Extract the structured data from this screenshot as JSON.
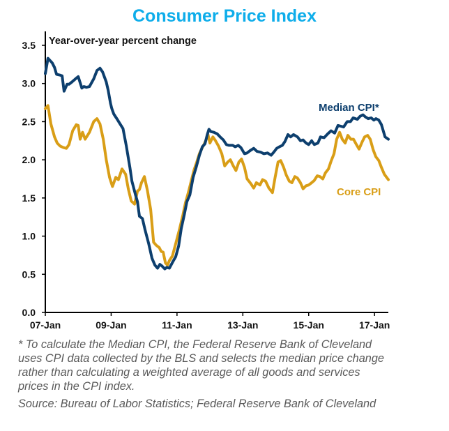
{
  "chart_data": {
    "type": "line",
    "title": "Consumer Price Index",
    "subtitle": "Year-over-year percent change",
    "xlabel": "",
    "ylabel": "Year-over-year percent change",
    "ylim": [
      0,
      3.5
    ],
    "xlim": [
      2007.0,
      2017.42
    ],
    "yticks": [
      0.0,
      0.5,
      1.0,
      1.5,
      2.0,
      2.5,
      3.0,
      3.5
    ],
    "ytick_labels": [
      "0.0",
      "0.5",
      "1.0",
      "1.5",
      "2.0",
      "2.5",
      "3.0",
      "3.5"
    ],
    "xticks": [
      2007,
      2009,
      2011,
      2013,
      2015,
      2017
    ],
    "xtick_labels": [
      "07-Jan",
      "09-Jan",
      "11-Jan",
      "13-Jan",
      "15-Jan",
      "17-Jan"
    ],
    "grid": false,
    "legend": "inline labels at right",
    "colors": {
      "median": "#0d3f6e",
      "core": "#d99e17",
      "title": "#0eadea"
    },
    "series": [
      {
        "name": "Median CPI*",
        "color": "#0d3f6e",
        "points": [
          [
            2007.0,
            3.13
          ],
          [
            2007.08,
            3.33
          ],
          [
            2007.21,
            3.27
          ],
          [
            2007.28,
            3.21
          ],
          [
            2007.34,
            3.12
          ],
          [
            2007.45,
            3.11
          ],
          [
            2007.51,
            3.1
          ],
          [
            2007.57,
            2.9
          ],
          [
            2007.66,
            2.99
          ],
          [
            2007.72,
            2.99
          ],
          [
            2007.81,
            3.02
          ],
          [
            2007.94,
            3.07
          ],
          [
            2008.0,
            3.09
          ],
          [
            2008.11,
            2.94
          ],
          [
            2008.17,
            2.96
          ],
          [
            2008.25,
            2.95
          ],
          [
            2008.34,
            2.96
          ],
          [
            2008.47,
            3.06
          ],
          [
            2008.57,
            3.17
          ],
          [
            2008.66,
            3.2
          ],
          [
            2008.74,
            3.15
          ],
          [
            2008.85,
            3.02
          ],
          [
            2008.91,
            2.91
          ],
          [
            2008.98,
            2.74
          ],
          [
            2009.02,
            2.67
          ],
          [
            2009.08,
            2.6
          ],
          [
            2009.17,
            2.54
          ],
          [
            2009.27,
            2.47
          ],
          [
            2009.36,
            2.41
          ],
          [
            2009.46,
            2.18
          ],
          [
            2009.57,
            1.9
          ],
          [
            2009.63,
            1.72
          ],
          [
            2009.74,
            1.54
          ],
          [
            2009.8,
            1.45
          ],
          [
            2009.86,
            1.26
          ],
          [
            2009.95,
            1.23
          ],
          [
            2010.03,
            1.08
          ],
          [
            2010.14,
            0.9
          ],
          [
            2010.24,
            0.71
          ],
          [
            2010.33,
            0.62
          ],
          [
            2010.41,
            0.58
          ],
          [
            2010.48,
            0.63
          ],
          [
            2010.54,
            0.61
          ],
          [
            2010.63,
            0.57
          ],
          [
            2010.69,
            0.59
          ],
          [
            2010.77,
            0.58
          ],
          [
            2010.88,
            0.67
          ],
          [
            2010.96,
            0.73
          ],
          [
            2011.05,
            0.87
          ],
          [
            2011.13,
            1.1
          ],
          [
            2011.22,
            1.28
          ],
          [
            2011.3,
            1.45
          ],
          [
            2011.39,
            1.54
          ],
          [
            2011.49,
            1.77
          ],
          [
            2011.58,
            1.9
          ],
          [
            2011.68,
            2.06
          ],
          [
            2011.77,
            2.17
          ],
          [
            2011.85,
            2.21
          ],
          [
            2011.92,
            2.33
          ],
          [
            2011.97,
            2.4
          ],
          [
            2012.03,
            2.37
          ],
          [
            2012.12,
            2.36
          ],
          [
            2012.22,
            2.34
          ],
          [
            2012.31,
            2.3
          ],
          [
            2012.41,
            2.26
          ],
          [
            2012.5,
            2.2
          ],
          [
            2012.58,
            2.19
          ],
          [
            2012.69,
            2.19
          ],
          [
            2012.77,
            2.17
          ],
          [
            2012.86,
            2.19
          ],
          [
            2012.94,
            2.16
          ],
          [
            2013.05,
            2.08
          ],
          [
            2013.13,
            2.09
          ],
          [
            2013.22,
            2.12
          ],
          [
            2013.33,
            2.15
          ],
          [
            2013.43,
            2.11
          ],
          [
            2013.54,
            2.1
          ],
          [
            2013.64,
            2.08
          ],
          [
            2013.75,
            2.09
          ],
          [
            2013.86,
            2.06
          ],
          [
            2013.94,
            2.1
          ],
          [
            2014.03,
            2.15
          ],
          [
            2014.11,
            2.17
          ],
          [
            2014.2,
            2.19
          ],
          [
            2014.28,
            2.24
          ],
          [
            2014.37,
            2.33
          ],
          [
            2014.45,
            2.3
          ],
          [
            2014.54,
            2.33
          ],
          [
            2014.66,
            2.3
          ],
          [
            2014.75,
            2.25
          ],
          [
            2014.83,
            2.26
          ],
          [
            2014.92,
            2.22
          ],
          [
            2015.0,
            2.2
          ],
          [
            2015.09,
            2.25
          ],
          [
            2015.17,
            2.2
          ],
          [
            2015.28,
            2.22
          ],
          [
            2015.36,
            2.3
          ],
          [
            2015.47,
            2.29
          ],
          [
            2015.58,
            2.34
          ],
          [
            2015.68,
            2.38
          ],
          [
            2015.79,
            2.35
          ],
          [
            2015.89,
            2.45
          ],
          [
            2015.98,
            2.44
          ],
          [
            2016.06,
            2.43
          ],
          [
            2016.17,
            2.5
          ],
          [
            2016.27,
            2.5
          ],
          [
            2016.35,
            2.55
          ],
          [
            2016.48,
            2.53
          ],
          [
            2016.56,
            2.57
          ],
          [
            2016.65,
            2.59
          ],
          [
            2016.73,
            2.56
          ],
          [
            2016.81,
            2.54
          ],
          [
            2016.9,
            2.55
          ],
          [
            2016.98,
            2.52
          ],
          [
            2017.04,
            2.54
          ],
          [
            2017.13,
            2.52
          ],
          [
            2017.21,
            2.46
          ],
          [
            2017.32,
            2.3
          ],
          [
            2017.42,
            2.27
          ]
        ]
      },
      {
        "name": "Core CPI",
        "color": "#d99e17",
        "points": [
          [
            2007.0,
            2.67
          ],
          [
            2007.08,
            2.71
          ],
          [
            2007.17,
            2.47
          ],
          [
            2007.28,
            2.3
          ],
          [
            2007.36,
            2.22
          ],
          [
            2007.45,
            2.18
          ],
          [
            2007.55,
            2.16
          ],
          [
            2007.64,
            2.15
          ],
          [
            2007.72,
            2.2
          ],
          [
            2007.83,
            2.38
          ],
          [
            2007.94,
            2.46
          ],
          [
            2008.0,
            2.45
          ],
          [
            2008.06,
            2.27
          ],
          [
            2008.13,
            2.36
          ],
          [
            2008.21,
            2.27
          ],
          [
            2008.34,
            2.36
          ],
          [
            2008.47,
            2.5
          ],
          [
            2008.57,
            2.54
          ],
          [
            2008.66,
            2.47
          ],
          [
            2008.76,
            2.27
          ],
          [
            2008.85,
            2.0
          ],
          [
            2008.95,
            1.77
          ],
          [
            2009.04,
            1.65
          ],
          [
            2009.14,
            1.77
          ],
          [
            2009.22,
            1.74
          ],
          [
            2009.33,
            1.88
          ],
          [
            2009.44,
            1.81
          ],
          [
            2009.52,
            1.62
          ],
          [
            2009.61,
            1.46
          ],
          [
            2009.71,
            1.42
          ],
          [
            2009.8,
            1.59
          ],
          [
            2009.86,
            1.61
          ],
          [
            2009.92,
            1.7
          ],
          [
            2010.01,
            1.78
          ],
          [
            2010.1,
            1.6
          ],
          [
            2010.2,
            1.35
          ],
          [
            2010.29,
            0.92
          ],
          [
            2010.37,
            0.88
          ],
          [
            2010.46,
            0.85
          ],
          [
            2010.52,
            0.8
          ],
          [
            2010.58,
            0.79
          ],
          [
            2010.65,
            0.65
          ],
          [
            2010.71,
            0.62
          ],
          [
            2010.77,
            0.68
          ],
          [
            2010.86,
            0.74
          ],
          [
            2010.96,
            0.9
          ],
          [
            2011.07,
            1.08
          ],
          [
            2011.18,
            1.28
          ],
          [
            2011.26,
            1.44
          ],
          [
            2011.35,
            1.58
          ],
          [
            2011.43,
            1.72
          ],
          [
            2011.52,
            1.87
          ],
          [
            2011.6,
            1.97
          ],
          [
            2011.68,
            2.08
          ],
          [
            2011.77,
            2.16
          ],
          [
            2011.83,
            2.21
          ],
          [
            2011.89,
            2.27
          ],
          [
            2011.94,
            2.33
          ],
          [
            2012.0,
            2.22
          ],
          [
            2012.09,
            2.3
          ],
          [
            2012.17,
            2.25
          ],
          [
            2012.26,
            2.18
          ],
          [
            2012.36,
            2.08
          ],
          [
            2012.45,
            1.92
          ],
          [
            2012.54,
            1.97
          ],
          [
            2012.62,
            2.0
          ],
          [
            2012.71,
            1.92
          ],
          [
            2012.79,
            1.86
          ],
          [
            2012.88,
            1.97
          ],
          [
            2012.96,
            2.01
          ],
          [
            2013.05,
            1.9
          ],
          [
            2013.13,
            1.75
          ],
          [
            2013.24,
            1.69
          ],
          [
            2013.33,
            1.63
          ],
          [
            2013.41,
            1.7
          ],
          [
            2013.52,
            1.67
          ],
          [
            2013.6,
            1.74
          ],
          [
            2013.69,
            1.72
          ],
          [
            2013.79,
            1.63
          ],
          [
            2013.9,
            1.57
          ],
          [
            2013.98,
            1.77
          ],
          [
            2014.07,
            1.97
          ],
          [
            2014.15,
            1.99
          ],
          [
            2014.24,
            1.9
          ],
          [
            2014.32,
            1.8
          ],
          [
            2014.41,
            1.72
          ],
          [
            2014.49,
            1.7
          ],
          [
            2014.58,
            1.78
          ],
          [
            2014.66,
            1.76
          ],
          [
            2014.75,
            1.7
          ],
          [
            2014.83,
            1.62
          ],
          [
            2014.92,
            1.66
          ],
          [
            2015.0,
            1.67
          ],
          [
            2015.09,
            1.7
          ],
          [
            2015.17,
            1.73
          ],
          [
            2015.26,
            1.79
          ],
          [
            2015.34,
            1.78
          ],
          [
            2015.43,
            1.75
          ],
          [
            2015.51,
            1.83
          ],
          [
            2015.6,
            1.88
          ],
          [
            2015.68,
            1.98
          ],
          [
            2015.77,
            2.08
          ],
          [
            2015.85,
            2.27
          ],
          [
            2015.94,
            2.36
          ],
          [
            2016.02,
            2.27
          ],
          [
            2016.11,
            2.22
          ],
          [
            2016.19,
            2.32
          ],
          [
            2016.28,
            2.27
          ],
          [
            2016.36,
            2.27
          ],
          [
            2016.45,
            2.2
          ],
          [
            2016.53,
            2.14
          ],
          [
            2016.62,
            2.23
          ],
          [
            2016.7,
            2.3
          ],
          [
            2016.79,
            2.32
          ],
          [
            2016.87,
            2.27
          ],
          [
            2016.96,
            2.13
          ],
          [
            2017.04,
            2.04
          ],
          [
            2017.13,
            1.99
          ],
          [
            2017.21,
            1.9
          ],
          [
            2017.3,
            1.81
          ],
          [
            2017.42,
            1.74
          ]
        ]
      }
    ],
    "annotations": [
      {
        "text": "Median CPI*",
        "series": "Median CPI*"
      },
      {
        "text": "Core CPI",
        "series": "Core CPI"
      }
    ]
  },
  "footnote": {
    "lines": [
      "*    To calculate the Median CPI, the Federal Reserve Bank of Cleveland",
      "uses CPI data collected by the BLS and selects the median price change",
      "rather than calculating a weighted average of all goods and services",
      "prices in the CPI index."
    ],
    "source": "Source:    Bureau of Labor Statistics; Federal Reserve Bank of Cleveland"
  }
}
